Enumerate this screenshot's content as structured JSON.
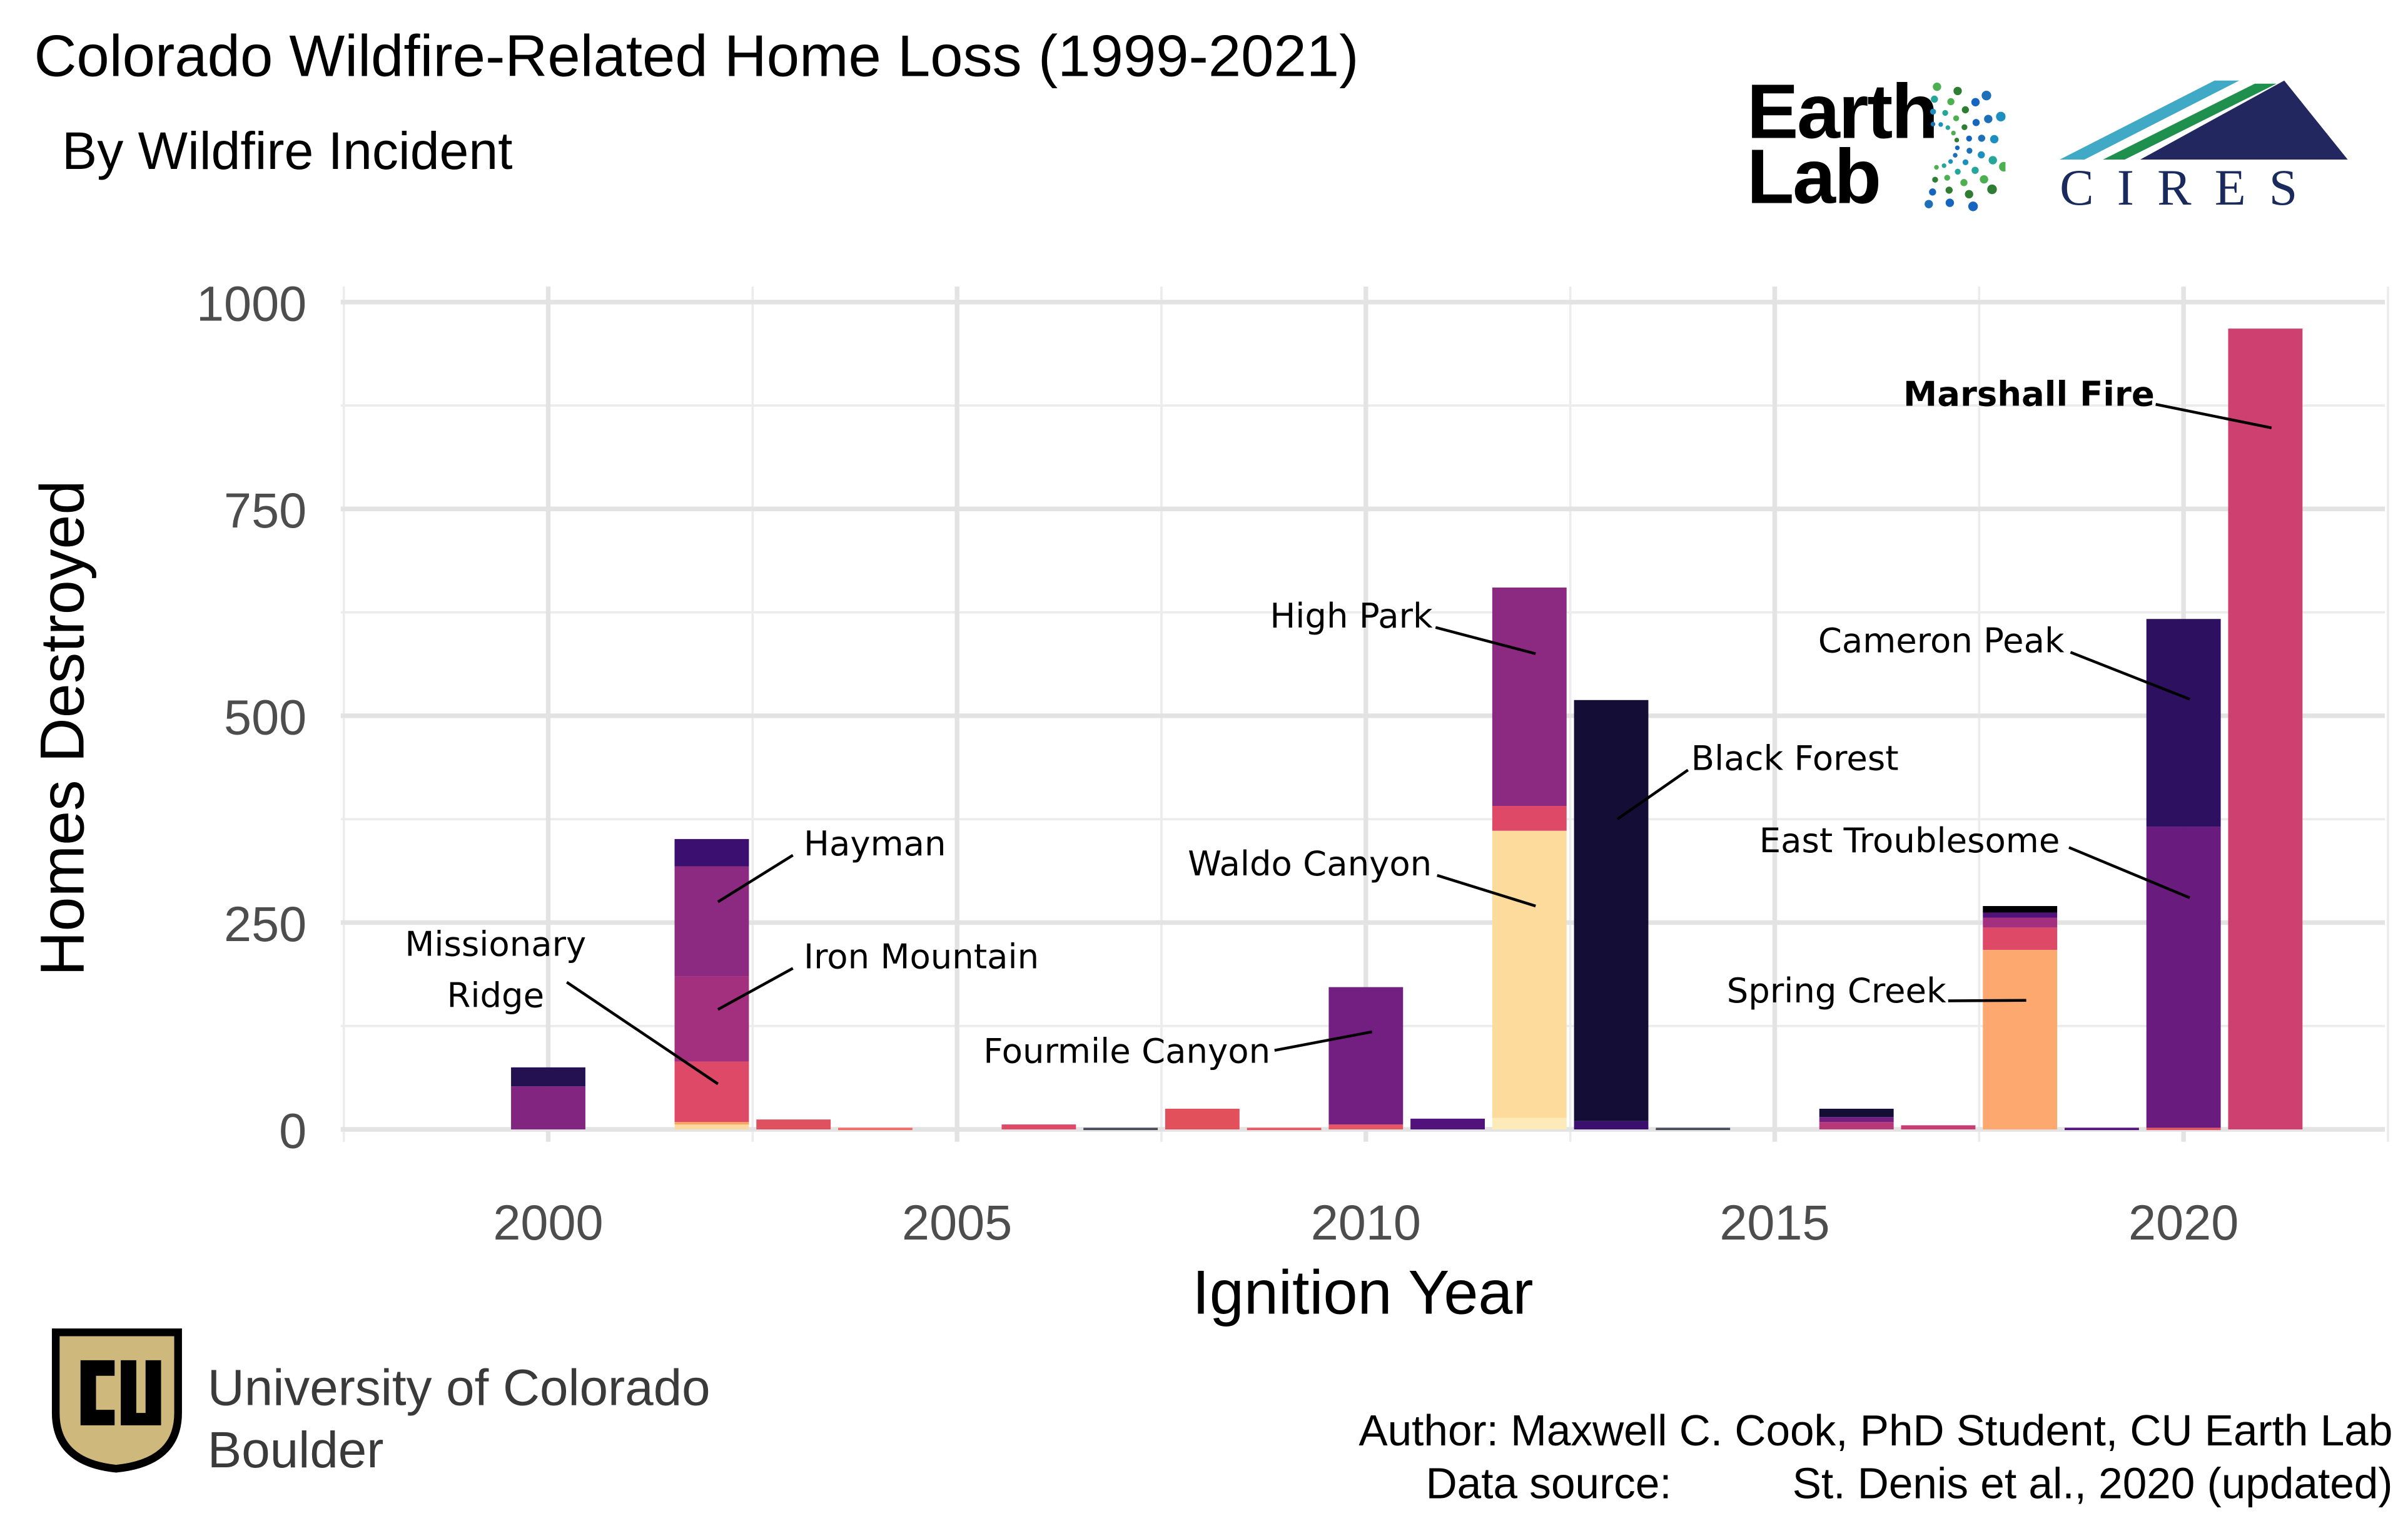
{
  "title": "Colorado Wildfire-Related Home Loss (1999-2021)",
  "subtitle": "By Wildfire Incident",
  "chart_data": {
    "type": "bar",
    "stacked": true,
    "xlabel": "Ignition Year",
    "ylabel": "Homes Destroyed",
    "xlim": [
      1997.5,
      2022.5
    ],
    "ylim": [
      -15,
      1015
    ],
    "x_ticks": [
      2000,
      2005,
      2010,
      2015,
      2020
    ],
    "y_ticks": [
      0,
      250,
      500,
      750,
      1000
    ],
    "grid": true,
    "palette": "magma",
    "bars": [
      {
        "year": 2000,
        "segments": [
          {
            "value": 52,
            "color": "#812581"
          },
          {
            "value": 23,
            "color": "#231151"
          }
        ]
      },
      {
        "year": 2002,
        "segments": [
          {
            "value": 6,
            "color": "#FCD9A0"
          },
          {
            "value": 3,
            "color": "#FCA45F"
          },
          {
            "value": 73,
            "color": "#DE4968"
          },
          {
            "value": 103,
            "color": "#A3307E"
          },
          {
            "value": 133,
            "color": "#8C2981"
          },
          {
            "value": 33,
            "color": "#3B0F70"
          }
        ]
      },
      {
        "year": 2003,
        "segments": [
          {
            "value": 12,
            "color": "#E0515F"
          }
        ]
      },
      {
        "year": 2004,
        "segments": [
          {
            "value": 2,
            "color": "#F06B63"
          }
        ]
      },
      {
        "year": 2006,
        "segments": [
          {
            "value": 6,
            "color": "#DE4968"
          }
        ]
      },
      {
        "year": 2007,
        "segments": [
          {
            "value": 2,
            "color": "#4A4A5A"
          }
        ]
      },
      {
        "year": 2008,
        "segments": [
          {
            "value": 25,
            "color": "#E2515B"
          }
        ]
      },
      {
        "year": 2009,
        "segments": [
          {
            "value": 2,
            "color": "#E65765"
          }
        ]
      },
      {
        "year": 2010,
        "segments": [
          {
            "value": 6,
            "color": "#E65765"
          },
          {
            "value": 166,
            "color": "#721F81"
          }
        ]
      },
      {
        "year": 2011,
        "segments": [
          {
            "value": 13,
            "color": "#51127C"
          }
        ]
      },
      {
        "year": 2012,
        "segments": [
          {
            "value": 14,
            "color": "#FCEBB8"
          },
          {
            "value": 347,
            "color": "#FCDB9D"
          },
          {
            "value": 30,
            "color": "#DE4968"
          },
          {
            "value": 264,
            "color": "#8C2981"
          }
        ]
      },
      {
        "year": 2013,
        "segments": [
          {
            "value": 10,
            "color": "#3B0F70"
          },
          {
            "value": 509,
            "color": "#140E36"
          }
        ]
      },
      {
        "year": 2014,
        "segments": [
          {
            "value": 2,
            "color": "#4A4A5A"
          }
        ]
      },
      {
        "year": 2016,
        "segments": [
          {
            "value": 9,
            "color": "#B73779"
          },
          {
            "value": 6,
            "color": "#721F81"
          },
          {
            "value": 10,
            "color": "#140E36"
          }
        ]
      },
      {
        "year": 2017,
        "segments": [
          {
            "value": 5,
            "color": "#C83E73"
          }
        ]
      },
      {
        "year": 2018,
        "segments": [
          {
            "value": 217,
            "color": "#FCA86F"
          },
          {
            "value": 27,
            "color": "#DE4968"
          },
          {
            "value": 12,
            "color": "#A3307E"
          },
          {
            "value": 6,
            "color": "#51127C"
          },
          {
            "value": 8,
            "color": "#000004"
          }
        ]
      },
      {
        "year": 2019,
        "segments": [
          {
            "value": 2,
            "color": "#51127C"
          }
        ]
      },
      {
        "year": 2020,
        "segments": [
          {
            "value": 2,
            "color": "#E65765"
          },
          {
            "value": 364,
            "color": "#6A1B7E"
          },
          {
            "value": 251,
            "color": "#2D1160"
          }
        ]
      },
      {
        "year": 2021,
        "segments": [
          {
            "value": 968,
            "color": "#CE406F"
          }
        ]
      }
    ],
    "annotations": [
      {
        "label": "Missionary Ridge",
        "year": 2002,
        "value": 55,
        "bold": false
      },
      {
        "label": "Hayman",
        "year": 2002,
        "value": 275,
        "bold": false
      },
      {
        "label": "Iron Mountain",
        "year": 2002,
        "value": 145,
        "bold": false
      },
      {
        "label": "Fourmile Canyon",
        "year": 2010,
        "value": 118,
        "bold": false
      },
      {
        "label": "High Park",
        "year": 2012,
        "value": 575,
        "bold": false
      },
      {
        "label": "Waldo Canyon",
        "year": 2012,
        "value": 270,
        "bold": false
      },
      {
        "label": "Black Forest",
        "year": 2013,
        "value": 375,
        "bold": false
      },
      {
        "label": "Spring Creek",
        "year": 2018,
        "value": 156,
        "bold": false
      },
      {
        "label": "Cameron Peak",
        "year": 2020,
        "value": 520,
        "bold": false
      },
      {
        "label": "East Troublesome",
        "year": 2020,
        "value": 280,
        "bold": false
      },
      {
        "label": "Marshall Fire",
        "year": 2021,
        "value": 848,
        "bold": true
      }
    ]
  },
  "logos": {
    "earth_lab_line1": "Earth",
    "earth_lab_line2": "Lab",
    "cires": "CIRES",
    "cu_line1": "University of Colorado",
    "cu_line2": "Boulder"
  },
  "credits": {
    "author": "Author: Maxwell C. Cook, PhD Student, CU Earth Lab",
    "data_source_label": "Data source:",
    "data_source": "St. Denis et al., 2020 (updated)"
  }
}
